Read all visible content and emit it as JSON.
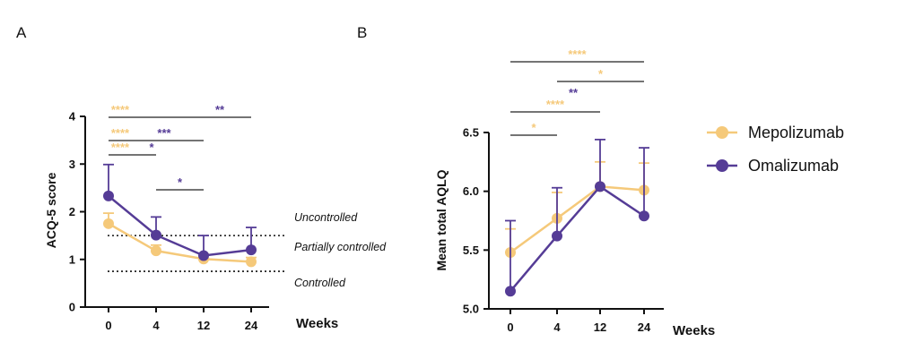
{
  "colors": {
    "mepolizumab": "#f5c97a",
    "omalizumab": "#553c96",
    "axis": "#111111"
  },
  "legend": {
    "items": [
      {
        "name": "Mepolizumab",
        "color": "#f5c97a"
      },
      {
        "name": "Omalizumab",
        "color": "#553c96"
      }
    ]
  },
  "chart_data": [
    {
      "panel": "A",
      "type": "line",
      "categories": [
        "0",
        "4",
        "12",
        "24"
      ],
      "xlabel": "Weeks",
      "ylabel": "ACQ-5 score",
      "ylim": [
        0,
        4
      ],
      "yticks": [
        "0",
        "1",
        "2",
        "3",
        "4"
      ],
      "series": [
        {
          "name": "Mepolizumab",
          "values": [
            1.75,
            1.18,
            1.01,
            0.95
          ],
          "error": [
            0.22,
            0.12,
            0.1,
            0.09
          ]
        },
        {
          "name": "Omalizumab",
          "values": [
            2.33,
            1.51,
            1.08,
            1.2
          ],
          "error": [
            0.66,
            0.38,
            0.42,
            0.47
          ]
        }
      ],
      "reference_lines": [
        {
          "y": 1.5,
          "style": "dotted"
        },
        {
          "y": 0.75,
          "style": "dotted"
        }
      ],
      "zone_labels": [
        "Uncontrolled",
        "Partially controlled",
        "Controlled"
      ],
      "significance": [
        {
          "from": "0",
          "to": "24",
          "label": "****",
          "series": "Mepolizumab"
        },
        {
          "from": "0",
          "to": "24",
          "label": "**",
          "series": "Omalizumab"
        },
        {
          "from": "0",
          "to": "12",
          "label": "****",
          "series": "Mepolizumab"
        },
        {
          "from": "0",
          "to": "12",
          "label": "***",
          "series": "Omalizumab"
        },
        {
          "from": "0",
          "to": "4",
          "label": "****",
          "series": "Mepolizumab"
        },
        {
          "from": "0",
          "to": "4",
          "label": "*",
          "series": "Omalizumab"
        },
        {
          "from": "4",
          "to": "12",
          "label": "*",
          "series": "Omalizumab"
        }
      ]
    },
    {
      "panel": "B",
      "type": "line",
      "categories": [
        "0",
        "4",
        "12",
        "24"
      ],
      "xlabel": "Weeks",
      "ylabel": "Mean total AQLQ",
      "ylim": [
        5.0,
        6.5
      ],
      "yticks": [
        "5.0",
        "5.5",
        "6.0",
        "6.5"
      ],
      "series": [
        {
          "name": "Mepolizumab",
          "values": [
            5.48,
            5.77,
            6.04,
            6.01
          ],
          "error": [
            0.2,
            0.22,
            0.21,
            0.23
          ]
        },
        {
          "name": "Omalizumab",
          "values": [
            5.15,
            5.62,
            6.04,
            5.79
          ],
          "error": [
            0.6,
            0.41,
            0.4,
            0.58
          ]
        }
      ],
      "significance": [
        {
          "from": "0",
          "to": "24",
          "label": "****",
          "series": "Mepolizumab"
        },
        {
          "from": "4",
          "to": "24",
          "label": "*",
          "series": "Mepolizumab"
        },
        {
          "from": "0",
          "to": "12",
          "label": "****",
          "series": "Mepolizumab"
        },
        {
          "from": "0",
          "to": "12",
          "label": "**",
          "series": "Omalizumab"
        },
        {
          "from": "0",
          "to": "4",
          "label": "*",
          "series": "Mepolizumab"
        }
      ]
    }
  ]
}
